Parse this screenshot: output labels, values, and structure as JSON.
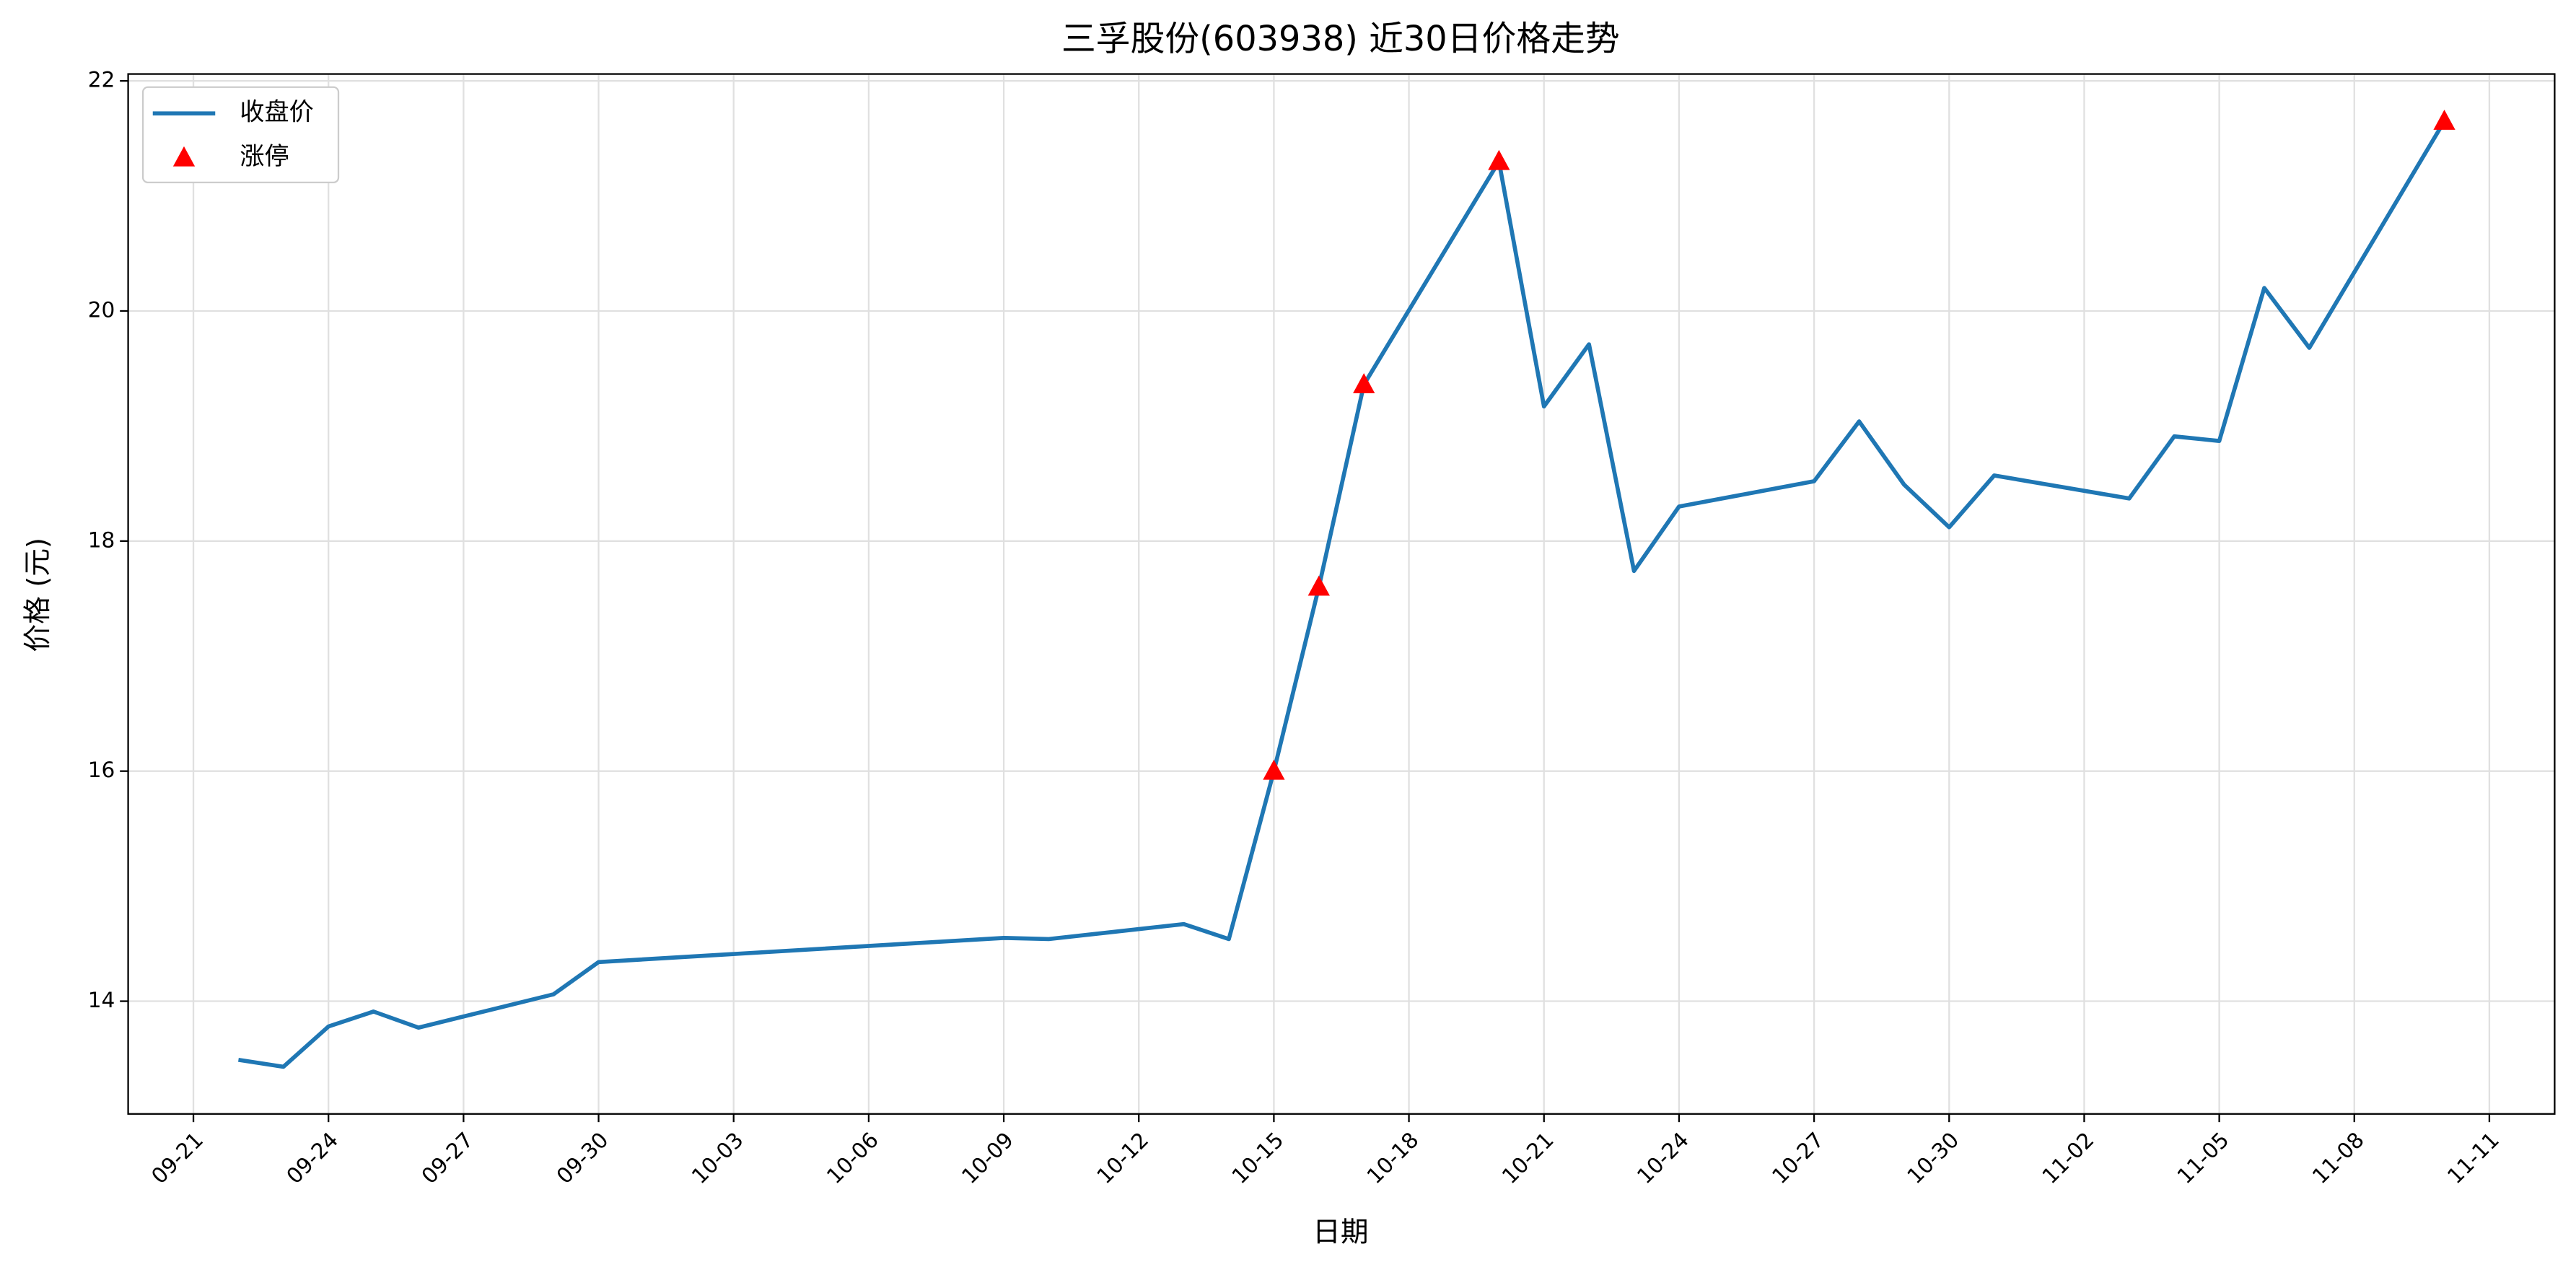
{
  "chart_data": {
    "type": "line",
    "title": "三孚股份(603938) 近30日价格走势",
    "x_label": "日期",
    "y_label": "价格 (元)",
    "ylim": [
      13.02,
      22.06
    ],
    "yticks": [
      14,
      16,
      18,
      20,
      22
    ],
    "xticks": [
      "09-21",
      "09-24",
      "09-27",
      "09-30",
      "10-03",
      "10-06",
      "10-09",
      "10-12",
      "10-15",
      "10-18",
      "10-21",
      "10-24",
      "10-27",
      "10-30",
      "11-02",
      "11-05",
      "11-08",
      "11-11"
    ],
    "grid": true,
    "legend": "upper left",
    "series": [
      {
        "name": "收盘价",
        "color": "#1f77b4",
        "x": [
          "09-22",
          "09-23",
          "09-24",
          "09-25",
          "09-26",
          "09-29",
          "09-30",
          "10-09",
          "10-10",
          "10-13",
          "10-14",
          "10-15",
          "10-16",
          "10-17",
          "10-20",
          "10-21",
          "10-22",
          "10-23",
          "10-24",
          "10-27",
          "10-28",
          "10-29",
          "10-30",
          "10-31",
          "11-03",
          "11-04",
          "11-05",
          "11-06",
          "11-07",
          "11-10"
        ],
        "values": [
          13.49,
          13.43,
          13.78,
          13.91,
          13.77,
          14.06,
          14.34,
          14.55,
          14.54,
          14.67,
          14.54,
          16.0,
          17.6,
          19.36,
          21.3,
          19.17,
          19.71,
          17.74,
          18.3,
          18.52,
          19.04,
          18.49,
          18.12,
          18.57,
          18.37,
          18.91,
          18.87,
          20.2,
          19.68,
          21.65
        ]
      },
      {
        "name": "涨停",
        "color": "#ff0000",
        "marker": "triangle",
        "x": [
          "10-15",
          "10-16",
          "10-17",
          "10-20",
          "11-10"
        ],
        "values": [
          16.0,
          17.6,
          19.36,
          21.3,
          21.65
        ]
      }
    ]
  }
}
